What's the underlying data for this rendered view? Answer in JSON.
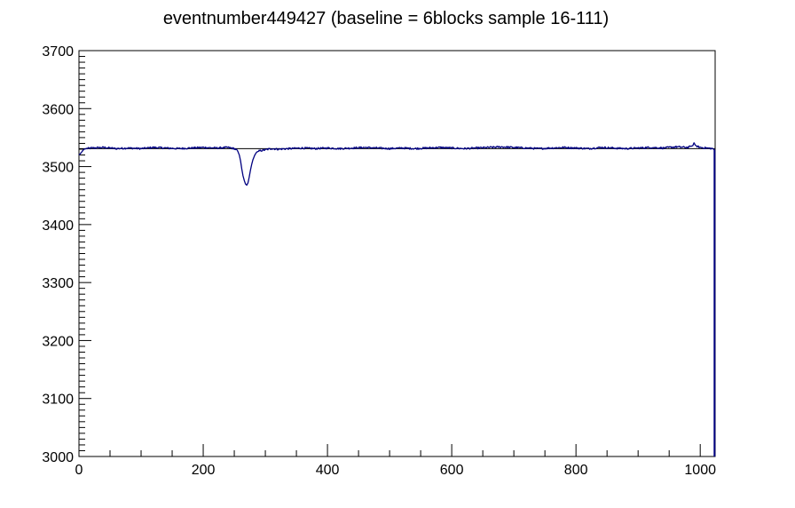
{
  "chart_data": {
    "type": "line",
    "title": "eventnumber449427 (baseline = 6blocks sample 16-111)",
    "xlabel": "",
    "ylabel": "",
    "xlim": [
      0,
      1024
    ],
    "ylim": [
      3000,
      3700
    ],
    "x_ticks": [
      0,
      200,
      400,
      600,
      800,
      1000
    ],
    "y_ticks": [
      3000,
      3100,
      3200,
      3300,
      3400,
      3500,
      3600,
      3700
    ],
    "x_tick_labels": [
      "0",
      "200",
      "400",
      "600",
      "800",
      "1000"
    ],
    "y_tick_labels": [
      "3000",
      "3100",
      "3200",
      "3300",
      "3400",
      "3500",
      "3600",
      "3700"
    ],
    "grid": false,
    "baseline": 3531,
    "line_color": "#000080",
    "series": [
      {
        "x": [
          0,
          2,
          5,
          8,
          12,
          20,
          40,
          60,
          80,
          100,
          120,
          140,
          160,
          180,
          200,
          220,
          240,
          250,
          255,
          258,
          260,
          262,
          264,
          266,
          268,
          270,
          272,
          274,
          276,
          278,
          280,
          283,
          286,
          290,
          295,
          300,
          305,
          310,
          320,
          340,
          360,
          380,
          400,
          420,
          440,
          460,
          480,
          500,
          520,
          540,
          560,
          580,
          600,
          620,
          640,
          660,
          680,
          700,
          720,
          740,
          760,
          780,
          800,
          820,
          840,
          860,
          880,
          900,
          920,
          940,
          960,
          980,
          985,
          988,
          990,
          992,
          995,
          1000,
          1010,
          1020,
          1023
        ],
        "y": [
          3520,
          3522,
          3526,
          3530,
          3531,
          3532,
          3533,
          3531,
          3532,
          3531,
          3533,
          3532,
          3531,
          3532,
          3533,
          3532,
          3533,
          3531,
          3528,
          3520,
          3510,
          3496,
          3484,
          3476,
          3470,
          3468,
          3472,
          3482,
          3494,
          3504,
          3512,
          3520,
          3525,
          3527,
          3528,
          3529,
          3530,
          3531,
          3530,
          3531,
          3532,
          3531,
          3532,
          3531,
          3532,
          3533,
          3532,
          3531,
          3532,
          3531,
          3532,
          3533,
          3532,
          3531,
          3532,
          3533,
          3534,
          3533,
          3532,
          3531,
          3532,
          3533,
          3532,
          3531,
          3533,
          3532,
          3531,
          3532,
          3533,
          3532,
          3534,
          3533,
          3535,
          3536,
          3541,
          3537,
          3535,
          3533,
          3532,
          3531,
          3529
        ]
      }
    ]
  }
}
